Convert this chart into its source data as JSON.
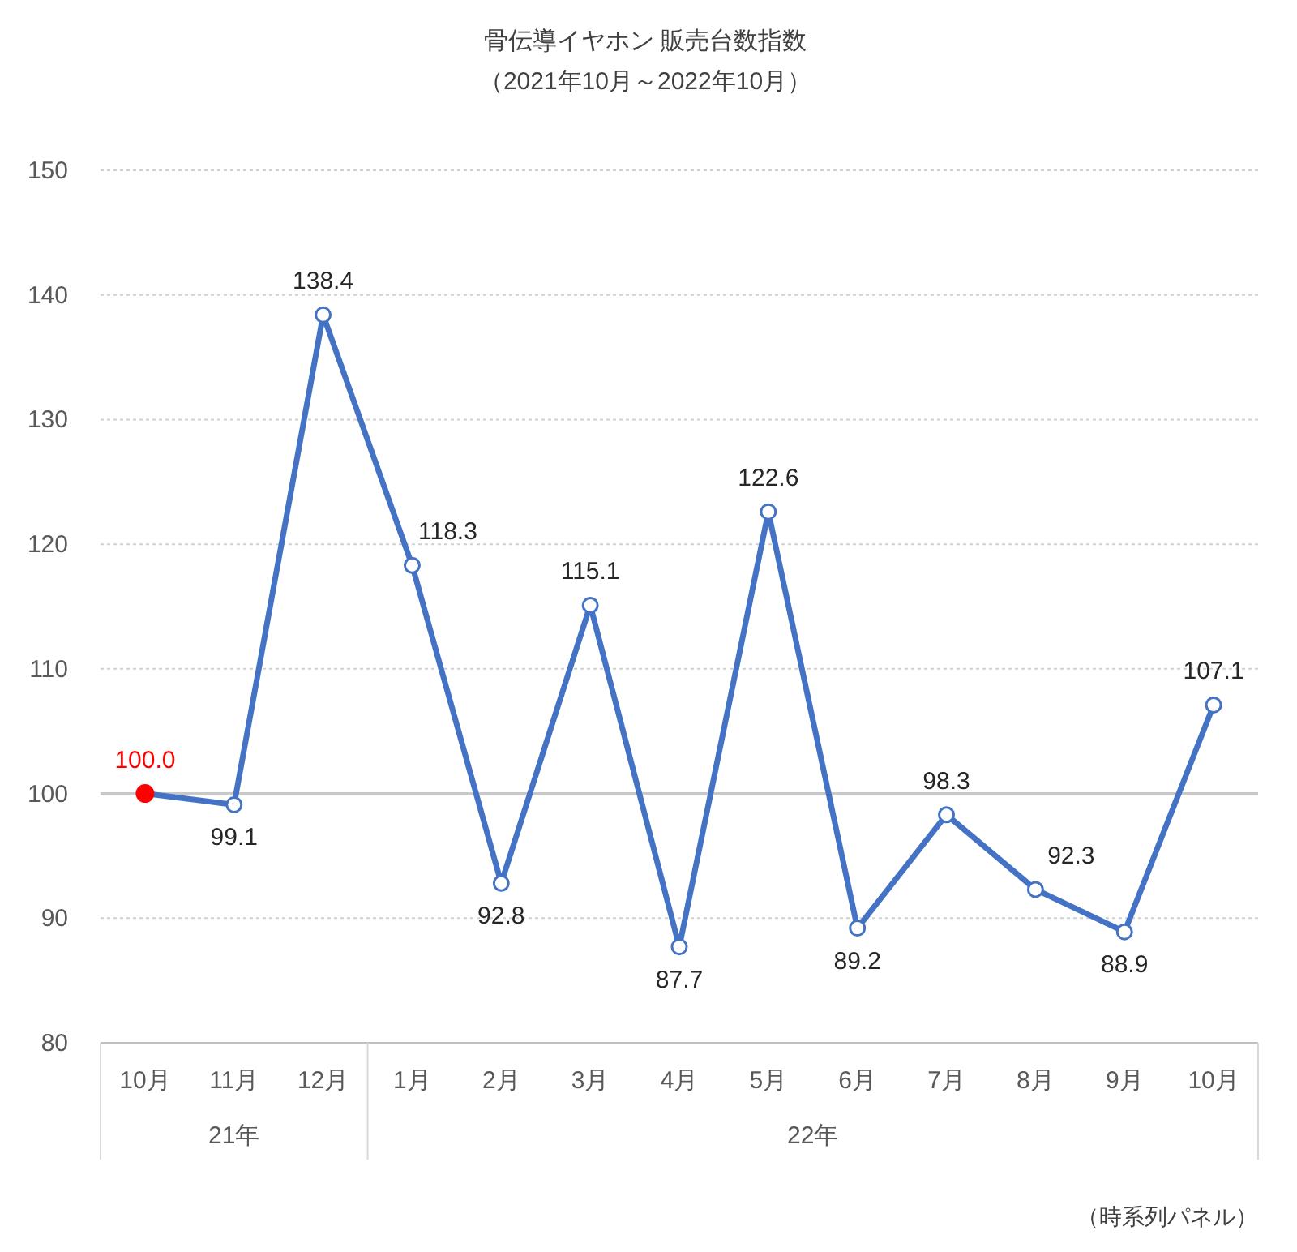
{
  "chart_data": {
    "type": "line",
    "title": "骨伝導イヤホン 販売台数指数",
    "subtitle": "（2021年10月～2022年10月）",
    "categories": [
      "10月",
      "11月",
      "12月",
      "1月",
      "2月",
      "3月",
      "4月",
      "5月",
      "6月",
      "7月",
      "8月",
      "9月",
      "10月"
    ],
    "series": [
      {
        "color": "#4472c4",
        "colors": [
          "#ff0000",
          "#4472c4",
          "#4472c4",
          "#4472c4",
          "#4472c4",
          "#4472c4",
          "#4472c4",
          "#4472c4",
          "#4472c4",
          "#4472c4",
          "#4472c4",
          "#4472c4",
          "#4472c4"
        ],
        "values": [
          100.0,
          99.1,
          138.4,
          118.3,
          92.8,
          115.1,
          87.7,
          122.6,
          89.2,
          98.3,
          92.3,
          88.9,
          107.1
        ],
        "value_labels": [
          "100.0",
          "99.1",
          "138.4",
          "118.3",
          "92.8",
          "115.1",
          "87.7",
          "122.6",
          "89.2",
          "98.3",
          "92.3",
          "88.9",
          "107.1"
        ]
      }
    ],
    "ylim": [
      80,
      150
    ],
    "yticks": [
      80,
      90,
      100,
      110,
      120,
      130,
      140,
      150
    ],
    "grid": "y",
    "marker": "circle",
    "line_style": "solid",
    "ref_lines": [
      {
        "axis": "y",
        "value": 100,
        "color": "#c8c8c8"
      }
    ],
    "annotations": [
      "21年",
      "22年",
      "（時系列パネル）"
    ]
  }
}
